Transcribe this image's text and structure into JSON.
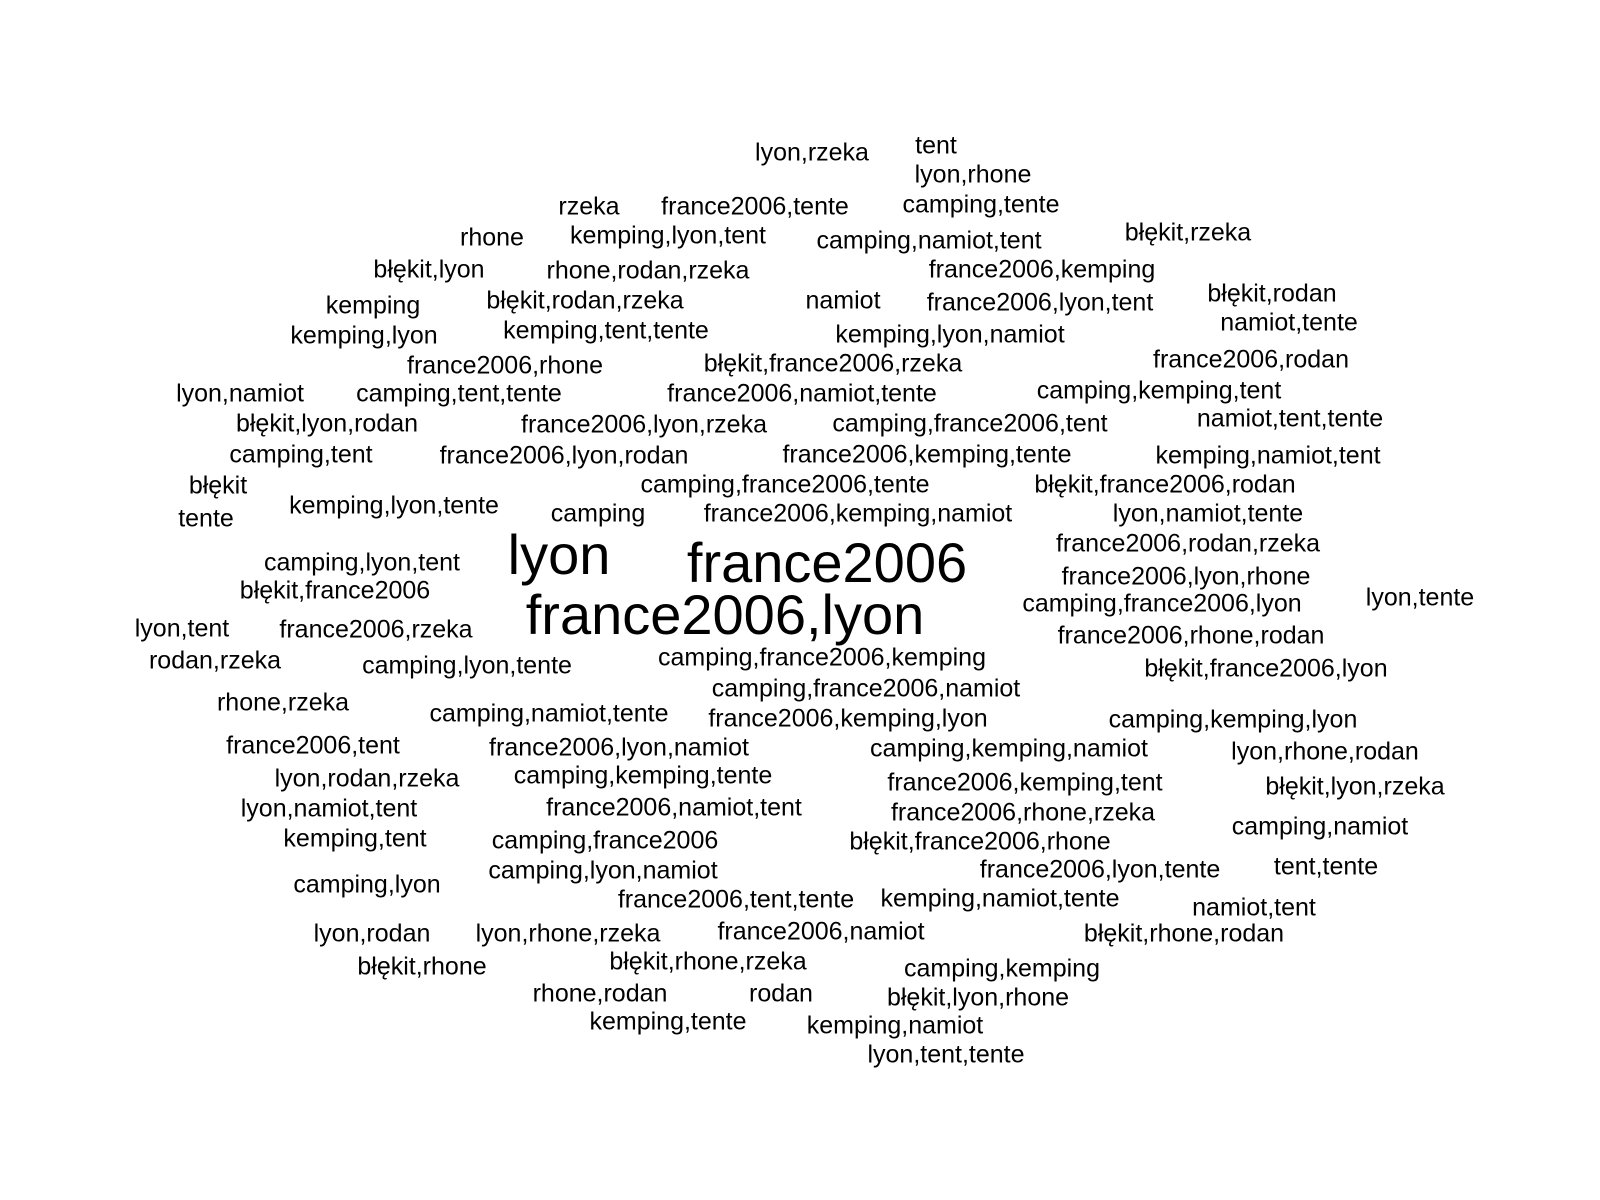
{
  "words": [
    {
      "text": "lyon,rzeka",
      "weight": 1
    },
    {
      "text": "tent",
      "weight": 1
    },
    {
      "text": "lyon,rhone",
      "weight": 1
    },
    {
      "text": "rzeka",
      "weight": 1
    },
    {
      "text": "france2006,tente",
      "weight": 1
    },
    {
      "text": "camping,tente",
      "weight": 1
    },
    {
      "text": "rhone",
      "weight": 1
    },
    {
      "text": "kemping,lyon,tent",
      "weight": 1
    },
    {
      "text": "camping,namiot,tent",
      "weight": 1
    },
    {
      "text": "błękit,rzeka",
      "weight": 1
    },
    {
      "text": "błękit,lyon",
      "weight": 1
    },
    {
      "text": "rhone,rodan,rzeka",
      "weight": 1
    },
    {
      "text": "france2006,kemping",
      "weight": 1
    },
    {
      "text": "kemping",
      "weight": 1
    },
    {
      "text": "błękit,rodan,rzeka",
      "weight": 1
    },
    {
      "text": "namiot",
      "weight": 1
    },
    {
      "text": "france2006,lyon,tent",
      "weight": 1
    },
    {
      "text": "błękit,rodan",
      "weight": 1
    },
    {
      "text": "kemping,lyon",
      "weight": 1
    },
    {
      "text": "kemping,tent,tente",
      "weight": 1
    },
    {
      "text": "kemping,lyon,namiot",
      "weight": 1
    },
    {
      "text": "namiot,tente",
      "weight": 1
    },
    {
      "text": "france2006,rhone",
      "weight": 1
    },
    {
      "text": "błękit,france2006,rzeka",
      "weight": 1
    },
    {
      "text": "france2006,rodan",
      "weight": 1
    },
    {
      "text": "lyon,namiot",
      "weight": 1
    },
    {
      "text": "camping,tent,tente",
      "weight": 1
    },
    {
      "text": "france2006,namiot,tente",
      "weight": 1
    },
    {
      "text": "camping,kemping,tent",
      "weight": 1
    },
    {
      "text": "błękit,lyon,rodan",
      "weight": 1
    },
    {
      "text": "france2006,lyon,rzeka",
      "weight": 1
    },
    {
      "text": "camping,france2006,tent",
      "weight": 1
    },
    {
      "text": "namiot,tent,tente",
      "weight": 1
    },
    {
      "text": "camping,tent",
      "weight": 1
    },
    {
      "text": "france2006,lyon,rodan",
      "weight": 1
    },
    {
      "text": "france2006,kemping,tente",
      "weight": 1
    },
    {
      "text": "kemping,namiot,tent",
      "weight": 1
    },
    {
      "text": "błękit",
      "weight": 1
    },
    {
      "text": "camping,france2006,tente",
      "weight": 1
    },
    {
      "text": "błękit,france2006,rodan",
      "weight": 1
    },
    {
      "text": "tente",
      "weight": 1
    },
    {
      "text": "kemping,lyon,tente",
      "weight": 1
    },
    {
      "text": "camping",
      "weight": 1
    },
    {
      "text": "france2006,kemping,namiot",
      "weight": 1
    },
    {
      "text": "lyon,namiot,tente",
      "weight": 1
    },
    {
      "text": "lyon",
      "weight": 3
    },
    {
      "text": "france2006",
      "weight": 3
    },
    {
      "text": "france2006,rodan,rzeka",
      "weight": 1
    },
    {
      "text": "camping,lyon,tent",
      "weight": 1
    },
    {
      "text": "france2006,lyon,rhone",
      "weight": 1
    },
    {
      "text": "błękit,france2006",
      "weight": 1
    },
    {
      "text": "france2006,lyon",
      "weight": 3
    },
    {
      "text": "camping,france2006,lyon",
      "weight": 1
    },
    {
      "text": "lyon,tente",
      "weight": 1
    },
    {
      "text": "lyon,tent",
      "weight": 1
    },
    {
      "text": "france2006,rzeka",
      "weight": 1
    },
    {
      "text": "france2006,rhone,rodan",
      "weight": 1
    },
    {
      "text": "rodan,rzeka",
      "weight": 1
    },
    {
      "text": "camping,france2006,kemping",
      "weight": 1
    },
    {
      "text": "camping,lyon,tente",
      "weight": 1
    },
    {
      "text": "błękit,france2006,lyon",
      "weight": 1
    },
    {
      "text": "camping,france2006,namiot",
      "weight": 1
    },
    {
      "text": "rhone,rzeka",
      "weight": 1
    },
    {
      "text": "camping,namiot,tente",
      "weight": 1
    },
    {
      "text": "france2006,kemping,lyon",
      "weight": 1
    },
    {
      "text": "camping,kemping,lyon",
      "weight": 1
    },
    {
      "text": "france2006,tent",
      "weight": 1
    },
    {
      "text": "france2006,lyon,namiot",
      "weight": 1
    },
    {
      "text": "camping,kemping,namiot",
      "weight": 1
    },
    {
      "text": "lyon,rhone,rodan",
      "weight": 1
    },
    {
      "text": "lyon,rodan,rzeka",
      "weight": 1
    },
    {
      "text": "camping,kemping,tente",
      "weight": 1
    },
    {
      "text": "france2006,kemping,tent",
      "weight": 1
    },
    {
      "text": "błękit,lyon,rzeka",
      "weight": 1
    },
    {
      "text": "lyon,namiot,tent",
      "weight": 1
    },
    {
      "text": "france2006,namiot,tent",
      "weight": 1
    },
    {
      "text": "france2006,rhone,rzeka",
      "weight": 1
    },
    {
      "text": "camping,namiot",
      "weight": 1
    },
    {
      "text": "kemping,tent",
      "weight": 1
    },
    {
      "text": "camping,france2006",
      "weight": 1
    },
    {
      "text": "błękit,france2006,rhone",
      "weight": 1
    },
    {
      "text": "camping,lyon,namiot",
      "weight": 1
    },
    {
      "text": "france2006,lyon,tente",
      "weight": 1
    },
    {
      "text": "tent,tente",
      "weight": 1
    },
    {
      "text": "camping,lyon",
      "weight": 1
    },
    {
      "text": "france2006,tent,tente",
      "weight": 1
    },
    {
      "text": "kemping,namiot,tente",
      "weight": 1
    },
    {
      "text": "namiot,tent",
      "weight": 1
    },
    {
      "text": "lyon,rodan",
      "weight": 1
    },
    {
      "text": "lyon,rhone,rzeka",
      "weight": 1
    },
    {
      "text": "france2006,namiot",
      "weight": 1
    },
    {
      "text": "błękit,rhone,rodan",
      "weight": 1
    },
    {
      "text": "błękit,rhone",
      "weight": 1
    },
    {
      "text": "błękit,rhone,rzeka",
      "weight": 1
    },
    {
      "text": "camping,kemping",
      "weight": 1
    },
    {
      "text": "rhone,rodan",
      "weight": 1
    },
    {
      "text": "rodan",
      "weight": 1
    },
    {
      "text": "błękit,lyon,rhone",
      "weight": 1
    },
    {
      "text": "kemping,tente",
      "weight": 1
    },
    {
      "text": "kemping,namiot",
      "weight": 1
    },
    {
      "text": "lyon,tent,tente",
      "weight": 1
    }
  ]
}
